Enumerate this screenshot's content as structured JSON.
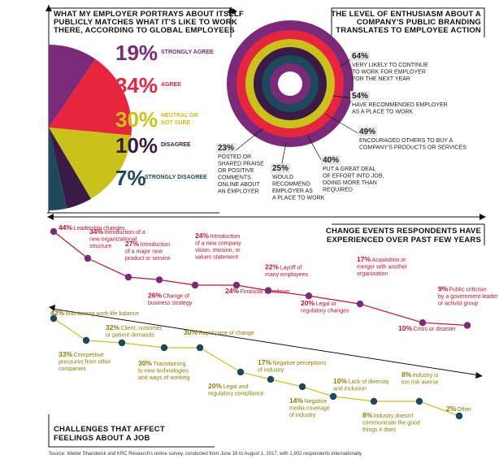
{
  "chart_data": [
    {
      "type": "pie",
      "title": "WHAT MY EMPLOYER PORTRAYS ABOUT ITSELF PUBLICLY MATCHES WHAT IT'S LIKE TO WORK THERE, ACCORDING TO GLOBAL EMPLOYEES",
      "title_lines": [
        "WHAT MY EMPLOYER PORTRAYS ABOUT ITSELF",
        "PUBLICLY MATCHES WHAT IT'S LIKE TO WORK",
        "THERE, ACCORDING TO GLOBAL EMPLOYEES"
      ],
      "slices": [
        {
          "value": 19,
          "label": "19%",
          "name": "STRONGLY AGREE",
          "name_lines": [
            "STRONGLY AGREE"
          ],
          "color": "#7b2a7a"
        },
        {
          "value": 34,
          "label": "34%",
          "name": "AGREE",
          "name_lines": [
            "AGREE"
          ],
          "color": "#e8253f"
        },
        {
          "value": 30,
          "label": "30%",
          "name": "NEUTRAL OR NOT SURE",
          "name_lines": [
            "NEUTRAL OR",
            "NOT SURE"
          ],
          "color": "#c9c21a"
        },
        {
          "value": 10,
          "label": "10%",
          "name": "DISAGREE",
          "name_lines": [
            "DISAGREE"
          ],
          "color": "#3b1a45"
        },
        {
          "value": 7,
          "label": "7%",
          "name": "STRONGLY DISAGREE",
          "name_lines": [
            "STRONGLY DISAGREE"
          ],
          "color": "#1c4a5c"
        }
      ]
    },
    {
      "type": "radial",
      "title": "THE LEVEL OF ENTHUSIASM ABOUT A COMPANY'S PUBLIC BRANDING TRANSLATES TO EMPLOYEE ACTION",
      "title_lines": [
        "THE LEVEL OF ENTHUSIASM ABOUT A",
        "COMPANY'S PUBLIC BRANDING",
        "TRANSLATES TO EMPLOYEE ACTION"
      ],
      "rings": [
        {
          "value": 64,
          "label": "64%",
          "text_lines": [
            "VERY LIKELY TO CONTINUE",
            "TO WORK FOR EMPLOYER",
            "FOR THE NEXT YEAR"
          ],
          "color": "#7b2a7a"
        },
        {
          "value": 54,
          "label": "54%",
          "text_lines": [
            "HAVE RECOMMENDED EMPLOYER",
            "AS A PLACE TO WORK"
          ],
          "color": "#e8253f"
        },
        {
          "value": 49,
          "label": "49%",
          "text_lines": [
            "ENCOURAGED OTHERS TO BUY A",
            "COMPANY'S PRODUCTS OR SERVICES"
          ],
          "color": "#c9c21a"
        },
        {
          "value": 40,
          "label": "40%",
          "text_lines": [
            "PUT A GREAT DEAL",
            "OF EFFORT INTO JOB,",
            "DOING MORE THAN",
            "REQUIRED"
          ],
          "color": "#3b1a45"
        },
        {
          "value": 25,
          "label": "25%",
          "text_lines": [
            "WOULD",
            "RECOMMEND",
            "EMPLOYER AS",
            "A PLACE TO WORK"
          ],
          "color": "#1c4a5c"
        },
        {
          "value": 23,
          "label": "23%",
          "text_lines": [
            "POSTED OR",
            "SHARED PRAISE",
            "OR POSITIVE",
            "COMMENTS",
            "ONLINE ABOUT",
            "AN EMPLOYER"
          ],
          "color": "#7b2a7a"
        }
      ]
    },
    {
      "type": "line",
      "title": "CHANGE EVENTS RESPONDENTS HAVE EXPERIENCED OVER PAST FEW YEARS",
      "title_lines": [
        "CHANGE EVENTS RESPONDENTS HAVE",
        "EXPERIENCED OVER PAST FEW YEARS"
      ],
      "color": "#c8122e",
      "points": [
        {
          "value": 44,
          "label": "44%",
          "text_lines": [
            "Leadership changes"
          ]
        },
        {
          "value": 34,
          "label": "34%",
          "text_lines": [
            "Introduction of a",
            "new organizational",
            "structure"
          ]
        },
        {
          "value": 27,
          "label": "27%",
          "text_lines": [
            "Introduction",
            "of a major new",
            "product or service"
          ]
        },
        {
          "value": 26,
          "label": "26%",
          "text_lines": [
            "Change of",
            "business strategy"
          ]
        },
        {
          "value": 24,
          "label": "24%",
          "text_lines": [
            "Introduction",
            "of a new company",
            "vision, mission, or",
            "values statement"
          ]
        },
        {
          "value": 24,
          "label": "24%",
          "text_lines": [
            "Financial slowdown"
          ]
        },
        {
          "value": 22,
          "label": "22%",
          "text_lines": [
            "Layoff of",
            "many employees"
          ]
        },
        {
          "value": 20,
          "label": "20%",
          "text_lines": [
            "Legal or",
            "regulatory changes"
          ]
        },
        {
          "value": 17,
          "label": "17%",
          "text_lines": [
            "Acquisition or",
            "merger with another",
            "organization"
          ]
        },
        {
          "value": 10,
          "label": "10%",
          "text_lines": [
            "Crisis or disaster"
          ]
        },
        {
          "value": 9,
          "label": "9%",
          "text_lines": [
            "Public criticism",
            "by a government leader",
            "or activist group"
          ]
        }
      ]
    },
    {
      "type": "line",
      "title": "CHALLENGES THAT AFFECT FEELINGS ABOUT A JOB",
      "title_lines": [
        "CHALLENGES THAT AFFECT",
        "FEELINGS ABOUT A JOB"
      ],
      "color": "#c9c21a",
      "points": [
        {
          "value": 42,
          "label": "42%",
          "text_lines": [
            "Maintaining work-life balance"
          ]
        },
        {
          "value": 33,
          "label": "33%",
          "text_lines": [
            "Competitive",
            "pressures from other",
            "companies"
          ]
        },
        {
          "value": 32,
          "label": "32%",
          "text_lines": [
            "Client, customer,",
            "or patient demands"
          ]
        },
        {
          "value": 30,
          "label": "30%",
          "text_lines": [
            "Transitioning",
            "to new technologies",
            "and ways of working"
          ]
        },
        {
          "value": 30,
          "label": "30%",
          "text_lines": [
            "Rapid pace of change"
          ]
        },
        {
          "value": 20,
          "label": "20%",
          "text_lines": [
            "Legal and",
            "regulatory compliance"
          ]
        },
        {
          "value": 17,
          "label": "17%",
          "text_lines": [
            "Negative perceptions",
            "of industry"
          ]
        },
        {
          "value": 14,
          "label": "14%",
          "text_lines": [
            "Negative",
            "media coverage",
            "of industry"
          ]
        },
        {
          "value": 10,
          "label": "10%",
          "text_lines": [
            "Lack of diversity",
            "and inclusion"
          ]
        },
        {
          "value": 8,
          "label": "8%",
          "text_lines": [
            "Industry doesn't",
            "communicate the good",
            "things it does"
          ]
        },
        {
          "value": 8,
          "label": "8%",
          "text_lines": [
            "Industry is",
            "too risk averse"
          ]
        },
        {
          "value": 2,
          "label": "2%",
          "text_lines": [
            "Other"
          ]
        }
      ]
    }
  ],
  "source": "Source: Weber Shandwick and KRC Research's online survey, conducted from June 18 to August 1, 2017, with 1,902 respondents internationally"
}
